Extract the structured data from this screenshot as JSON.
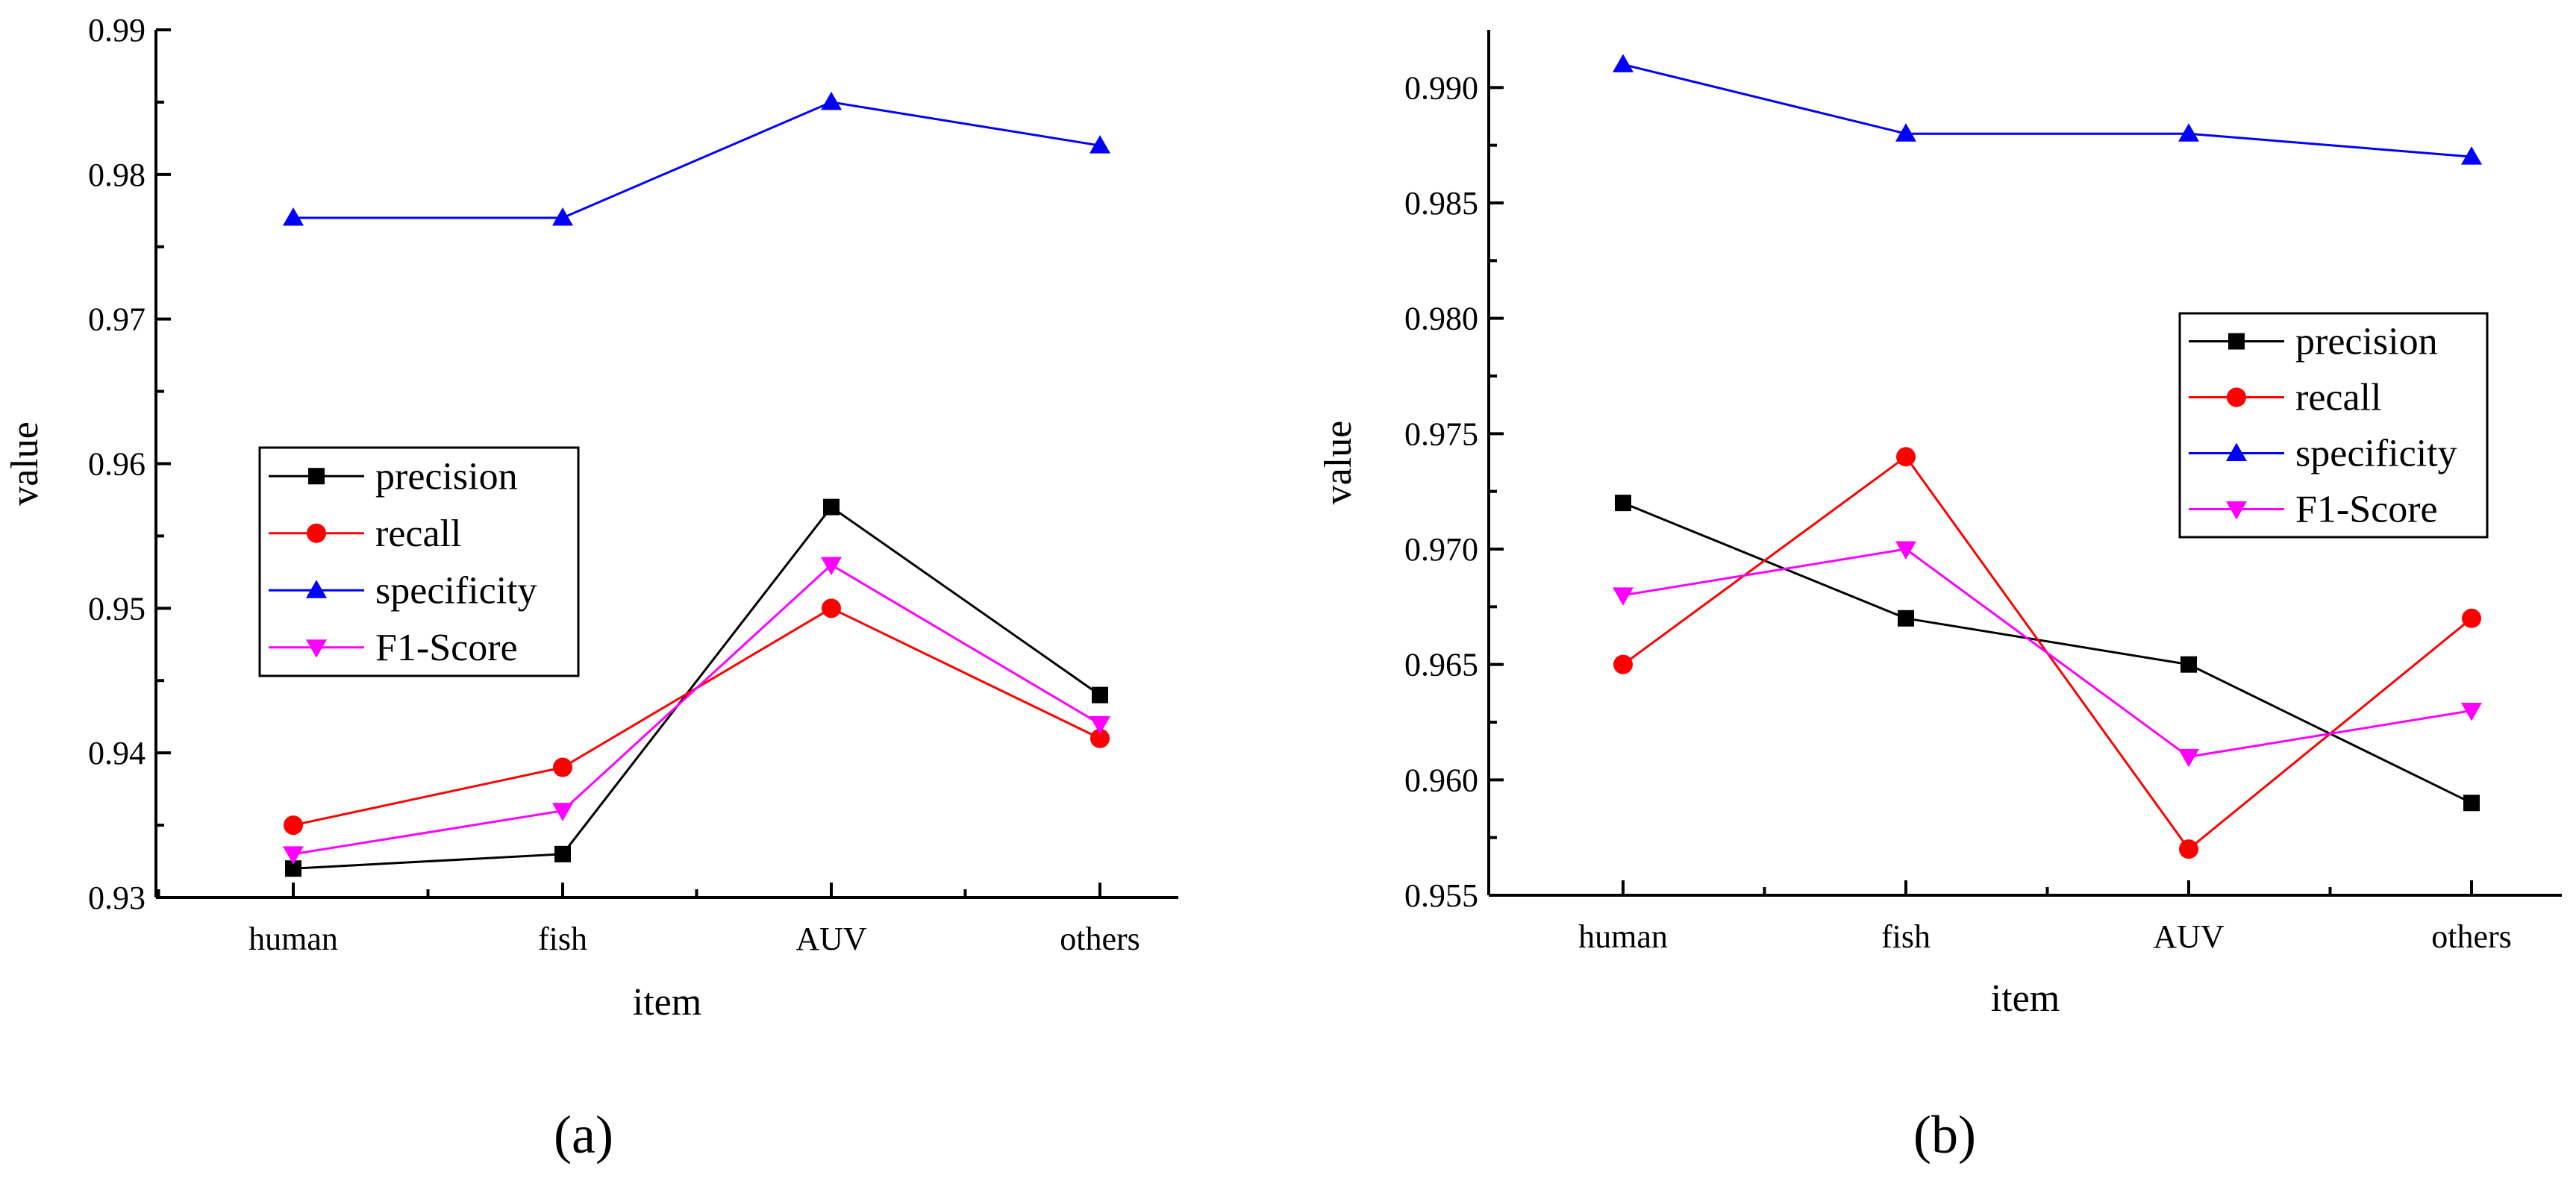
{
  "panel_labels": [
    "(a)",
    "(b)"
  ],
  "chart_data": [
    {
      "type": "line",
      "panel_label": "(a)",
      "title": "",
      "xlabel": "item",
      "ylabel": "value",
      "categories": [
        "human",
        "fish",
        "AUV",
        "others"
      ],
      "ylim": [
        0.93,
        0.99
      ],
      "yticks": [
        0.93,
        0.94,
        0.95,
        0.96,
        0.97,
        0.98,
        0.99
      ],
      "yticks_text": [
        "0.93",
        "0.94",
        "0.95",
        "0.96",
        "0.97",
        "0.98",
        "0.99"
      ],
      "grid": false,
      "legend_position": "middle-left",
      "series": [
        {
          "name": "precision",
          "color": "#000000",
          "marker": "square",
          "values": [
            0.932,
            0.933,
            0.957,
            0.944
          ]
        },
        {
          "name": "recall",
          "color": "#ff0000",
          "marker": "circle",
          "values": [
            0.935,
            0.939,
            0.95,
            0.941
          ]
        },
        {
          "name": "specificity",
          "color": "#0000ff",
          "marker": "triangle-up",
          "values": [
            0.977,
            0.977,
            0.985,
            0.982
          ]
        },
        {
          "name": "F1-Score",
          "color": "#ff00ff",
          "marker": "triangle-down",
          "values": [
            0.933,
            0.936,
            0.953,
            0.942
          ]
        }
      ]
    },
    {
      "type": "line",
      "panel_label": "(b)",
      "title": "",
      "xlabel": "item",
      "ylabel": "value",
      "categories": [
        "human",
        "fish",
        "AUV",
        "others"
      ],
      "ylim": [
        0.955,
        0.9925
      ],
      "yticks": [
        0.955,
        0.96,
        0.965,
        0.97,
        0.975,
        0.98,
        0.985,
        0.99
      ],
      "yticks_text": [
        "0.955",
        "0.960",
        "0.965",
        "0.970",
        "0.975",
        "0.980",
        "0.985",
        "0.990"
      ],
      "grid": false,
      "legend_position": "right",
      "series": [
        {
          "name": "precision",
          "color": "#000000",
          "marker": "square",
          "values": [
            0.972,
            0.967,
            0.965,
            0.959
          ]
        },
        {
          "name": "recall",
          "color": "#ff0000",
          "marker": "circle",
          "values": [
            0.965,
            0.974,
            0.957,
            0.967
          ]
        },
        {
          "name": "specificity",
          "color": "#0000ff",
          "marker": "triangle-up",
          "values": [
            0.991,
            0.988,
            0.988,
            0.987
          ]
        },
        {
          "name": "F1-Score",
          "color": "#ff00ff",
          "marker": "triangle-down",
          "values": [
            0.968,
            0.97,
            0.961,
            0.963
          ]
        }
      ]
    }
  ]
}
